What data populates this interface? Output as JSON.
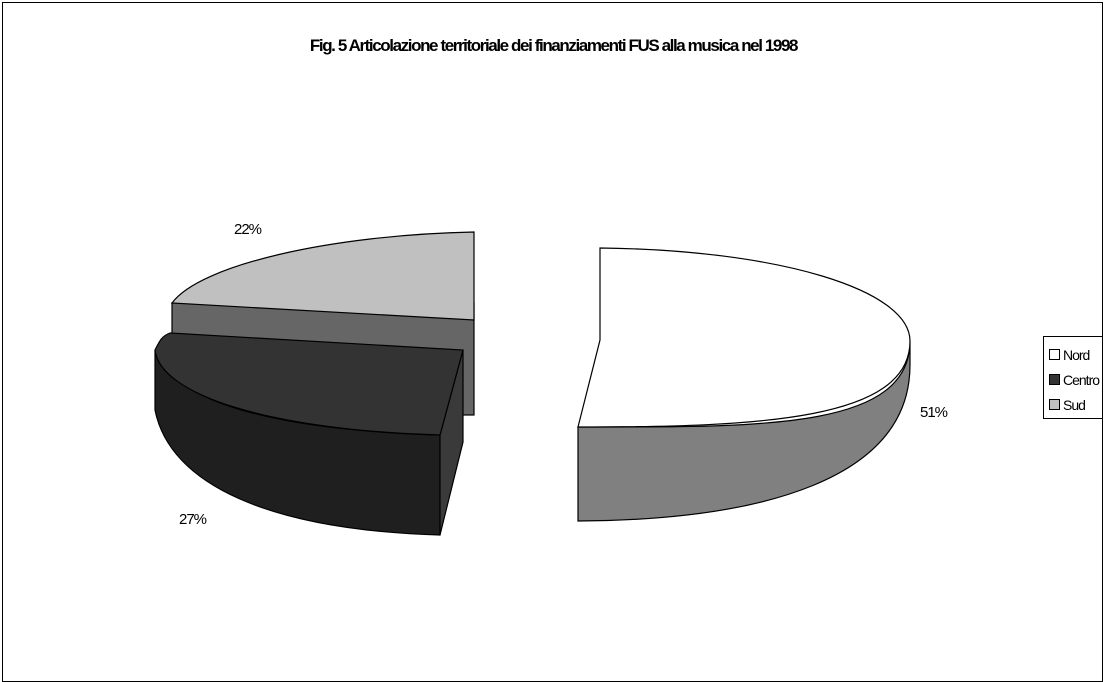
{
  "chart_data": {
    "type": "pie",
    "title": "Fig. 5 Articolazione territoriale dei finanziamenti FUS alla musica nel 1998",
    "categories": [
      "Nord",
      "Centro",
      "Sud"
    ],
    "values": [
      51,
      27,
      22
    ],
    "data_labels": [
      "51%",
      "27%",
      "22%"
    ],
    "legend_position": "right",
    "exploded": true,
    "three_d": true,
    "colors": {
      "Nord": "#ffffff",
      "Centro": "#333333",
      "Sud": "#c0c0c0"
    }
  }
}
